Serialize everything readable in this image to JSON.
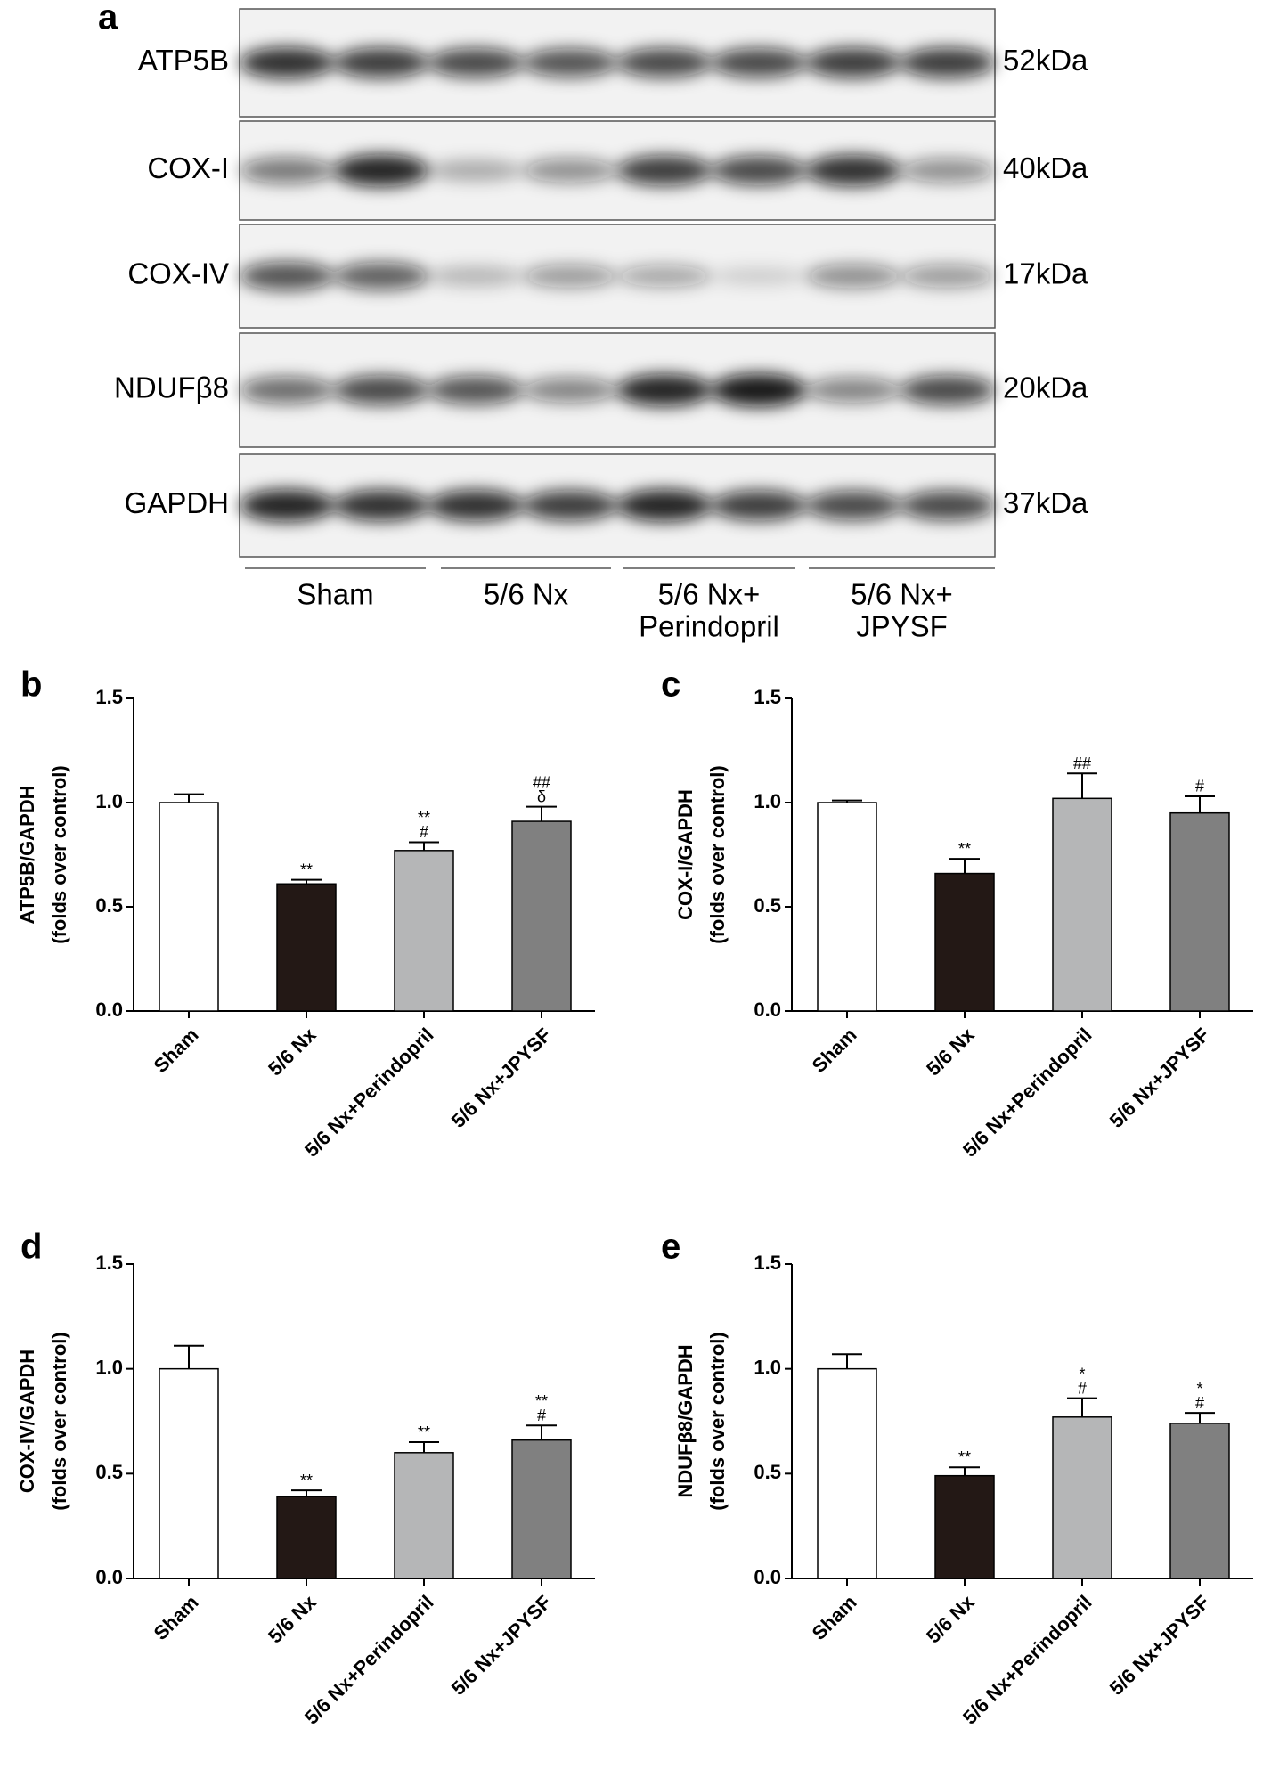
{
  "blot": {
    "panel": "a",
    "rows": [
      {
        "protein": "ATP5B",
        "size": "52kDa"
      },
      {
        "protein": "COX-I",
        "size": "40kDa"
      },
      {
        "protein": "COX-IV",
        "size": "17kDa"
      },
      {
        "protein": "NDUFβ8",
        "size": "20kDa"
      },
      {
        "protein": "GAPDH",
        "size": "37kDa"
      }
    ],
    "groups": [
      [
        "Sham"
      ],
      [
        "5/6 Nx"
      ],
      [
        "5/6 Nx+",
        "Perindopril"
      ],
      [
        "5/6 Nx+",
        "JPYSF"
      ]
    ]
  },
  "chart_data": [
    {
      "type": "bar",
      "panel": "b",
      "ylabel": [
        "ATP5B/GAPDH",
        "(folds over control)"
      ],
      "categories": [
        "Sham",
        "5/6 Nx",
        "5/6 Nx+Perindopril",
        "5/6 Nx+JPYSF"
      ],
      "values": [
        1.0,
        0.61,
        0.77,
        0.91
      ],
      "errors": [
        0.04,
        0.02,
        0.04,
        0.07
      ],
      "annotations": [
        [],
        [
          "**"
        ],
        [
          "**",
          "#"
        ],
        [
          "##",
          "δ"
        ]
      ],
      "colors": [
        "#ffffff",
        "#231815",
        "#b5b6b7",
        "#808080"
      ],
      "ylim": [
        0,
        1.5
      ],
      "yticks": [
        {
          "value": 0,
          "label": "0.0"
        },
        0.5,
        {
          "value": 1,
          "label": "1.0"
        },
        1.5
      ]
    },
    {
      "type": "bar",
      "panel": "c",
      "ylabel": [
        "COX-I/GAPDH",
        "(folds over control)"
      ],
      "categories": [
        "Sham",
        "5/6 Nx",
        "5/6 Nx+Perindopril",
        "5/6 Nx+JPYSF"
      ],
      "values": [
        1.0,
        0.66,
        1.02,
        0.95
      ],
      "errors": [
        0.01,
        0.07,
        0.12,
        0.08
      ],
      "annotations": [
        [],
        [
          "**"
        ],
        [
          "##"
        ],
        [
          "#"
        ]
      ],
      "colors": [
        "#ffffff",
        "#231815",
        "#b5b6b7",
        "#808080"
      ],
      "ylim": [
        0,
        1.5
      ],
      "yticks": [
        {
          "value": 0,
          "label": "0.0"
        },
        0.5,
        {
          "value": 1,
          "label": "1.0"
        },
        1.5
      ]
    },
    {
      "type": "bar",
      "panel": "d",
      "ylabel": [
        "COX-IV/GAPDH",
        "(folds over control)"
      ],
      "categories": [
        "Sham",
        "5/6 Nx",
        "5/6 Nx+Perindopril",
        "5/6 Nx+JPYSF"
      ],
      "values": [
        1.0,
        0.39,
        0.6,
        0.66
      ],
      "errors": [
        0.11,
        0.03,
        0.05,
        0.07
      ],
      "annotations": [
        [],
        [
          "**"
        ],
        [
          "**"
        ],
        [
          "**",
          "#"
        ]
      ],
      "colors": [
        "#ffffff",
        "#231815",
        "#b5b6b7",
        "#808080"
      ],
      "ylim": [
        0,
        1.5
      ],
      "yticks": [
        {
          "value": 0,
          "label": "0.0"
        },
        0.5,
        {
          "value": 1,
          "label": "1.0"
        },
        1.5
      ]
    },
    {
      "type": "bar",
      "panel": "e",
      "ylabel": [
        "NDUFβ8/GAPDH",
        "(folds over control)"
      ],
      "categories": [
        "Sham",
        "5/6 Nx",
        "5/6 Nx+Perindopril",
        "5/6 Nx+JPYSF"
      ],
      "values": [
        1.0,
        0.49,
        0.77,
        0.74
      ],
      "errors": [
        0.07,
        0.04,
        0.09,
        0.05
      ],
      "annotations": [
        [],
        [
          "**"
        ],
        [
          "*",
          "#"
        ],
        [
          "*",
          "#"
        ]
      ],
      "colors": [
        "#ffffff",
        "#231815",
        "#b5b6b7",
        "#808080"
      ],
      "ylim": [
        0,
        1.5
      ],
      "yticks": [
        {
          "value": 0,
          "label": "0.0"
        },
        0.5,
        {
          "value": 1,
          "label": "1.0"
        },
        1.5
      ]
    }
  ]
}
